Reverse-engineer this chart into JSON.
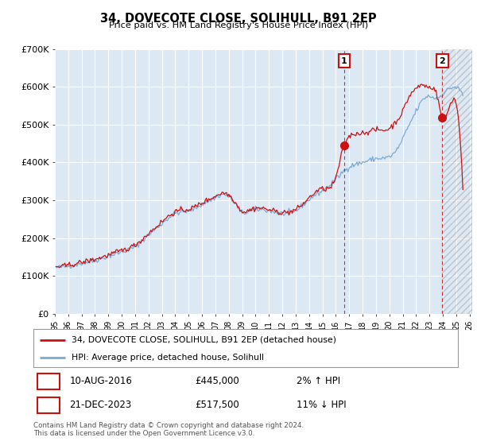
{
  "title": "34, DOVECOTE CLOSE, SOLIHULL, B91 2EP",
  "subtitle": "Price paid vs. HM Land Registry's House Price Index (HPI)",
  "ylim": [
    0,
    700000
  ],
  "yticks": [
    0,
    100000,
    200000,
    300000,
    400000,
    500000,
    600000,
    700000
  ],
  "ytick_labels": [
    "£0",
    "£100K",
    "£200K",
    "£300K",
    "£400K",
    "£500K",
    "£600K",
    "£700K"
  ],
  "xlim_start": 1995.4,
  "xlim_end": 2026.2,
  "background_color": "#ffffff",
  "plot_bg_color": "#dce9f5",
  "grid_color": "#ffffff",
  "hpi_color": "#7aaad4",
  "price_color": "#cc1111",
  "sale1_x": 2016.62,
  "sale1_y": 445000,
  "sale1_label": "1",
  "sale1_date": "10-AUG-2016",
  "sale1_price": "£445,000",
  "sale1_hpi": "2% ↑ HPI",
  "sale2_x": 2023.97,
  "sale2_y": 517500,
  "sale2_label": "2",
  "sale2_date": "21-DEC-2023",
  "sale2_price": "£517,500",
  "sale2_hpi": "11% ↓ HPI",
  "legend_label1": "34, DOVECOTE CLOSE, SOLIHULL, B91 2EP (detached house)",
  "legend_label2": "HPI: Average price, detached house, Solihull",
  "footer": "Contains HM Land Registry data © Crown copyright and database right 2024.\nThis data is licensed under the Open Government Licence v3.0.",
  "hatch_start": 2023.97,
  "hatch_end": 2026.2
}
